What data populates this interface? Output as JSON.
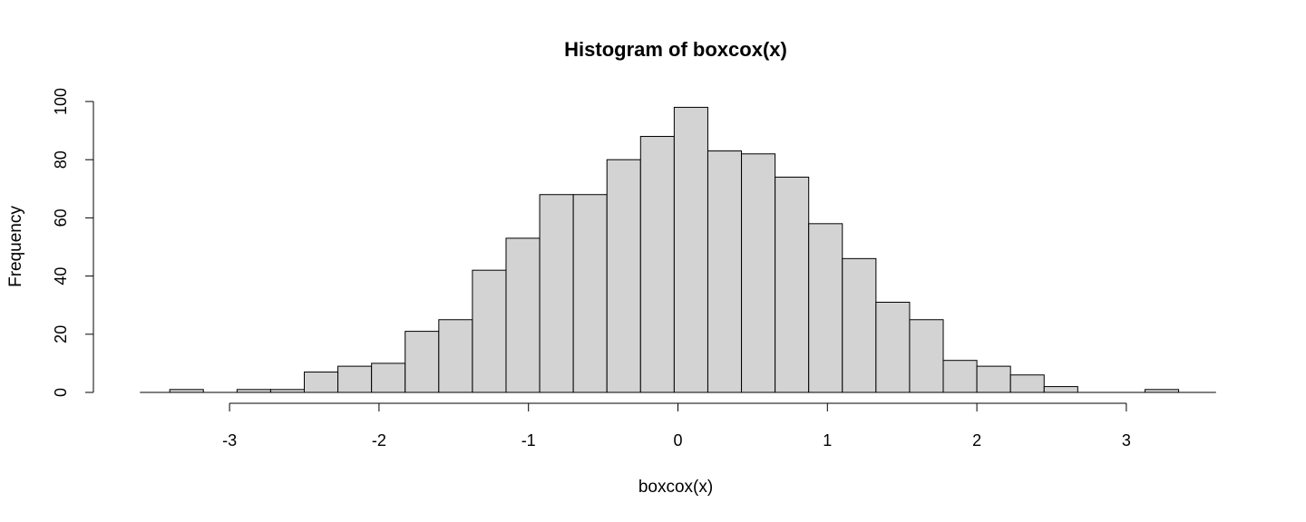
{
  "chart_data": {
    "type": "bar",
    "title": "Histogram of boxcox(x)",
    "xlabel": "boxcox(x)",
    "ylabel": "Frequency",
    "xlim": [
      -3.6,
      3.6
    ],
    "ylim": [
      0,
      100
    ],
    "x_ticks": [
      "-3",
      "-2",
      "-1",
      "0",
      "1",
      "2",
      "3"
    ],
    "y_ticks": [
      "0",
      "20",
      "40",
      "60",
      "80",
      "100"
    ],
    "bin_width": 0.225,
    "bins": [
      {
        "start": -3.4,
        "end": -3.175,
        "count": 1
      },
      {
        "start": -3.175,
        "end": -2.95,
        "count": 0
      },
      {
        "start": -2.95,
        "end": -2.725,
        "count": 1
      },
      {
        "start": -2.725,
        "end": -2.5,
        "count": 1
      },
      {
        "start": -2.5,
        "end": -2.275,
        "count": 7
      },
      {
        "start": -2.275,
        "end": -2.05,
        "count": 9
      },
      {
        "start": -2.05,
        "end": -1.825,
        "count": 10
      },
      {
        "start": -1.825,
        "end": -1.6,
        "count": 21
      },
      {
        "start": -1.6,
        "end": -1.375,
        "count": 25
      },
      {
        "start": -1.375,
        "end": -1.15,
        "count": 42
      },
      {
        "start": -1.15,
        "end": -0.925,
        "count": 53
      },
      {
        "start": -0.925,
        "end": -0.7,
        "count": 68
      },
      {
        "start": -0.7,
        "end": -0.475,
        "count": 68
      },
      {
        "start": -0.475,
        "end": -0.25,
        "count": 80
      },
      {
        "start": -0.25,
        "end": -0.025,
        "count": 88
      },
      {
        "start": -0.025,
        "end": 0.2,
        "count": 98
      },
      {
        "start": 0.2,
        "end": 0.425,
        "count": 83
      },
      {
        "start": 0.425,
        "end": 0.65,
        "count": 82
      },
      {
        "start": 0.65,
        "end": 0.875,
        "count": 74
      },
      {
        "start": 0.875,
        "end": 1.1,
        "count": 58
      },
      {
        "start": 1.1,
        "end": 1.325,
        "count": 46
      },
      {
        "start": 1.325,
        "end": 1.55,
        "count": 31
      },
      {
        "start": 1.55,
        "end": 1.775,
        "count": 25
      },
      {
        "start": 1.775,
        "end": 2.0,
        "count": 11
      },
      {
        "start": 2.0,
        "end": 2.225,
        "count": 9
      },
      {
        "start": 2.225,
        "end": 2.45,
        "count": 6
      },
      {
        "start": 2.45,
        "end": 2.675,
        "count": 2
      },
      {
        "start": 2.675,
        "end": 2.9,
        "count": 0
      },
      {
        "start": 2.9,
        "end": 3.125,
        "count": 0
      },
      {
        "start": 3.125,
        "end": 3.35,
        "count": 1
      }
    ],
    "grid": false,
    "legend": "none",
    "colors": {
      "bar_fill": "#d3d3d3",
      "bar_stroke": "#000000"
    }
  }
}
